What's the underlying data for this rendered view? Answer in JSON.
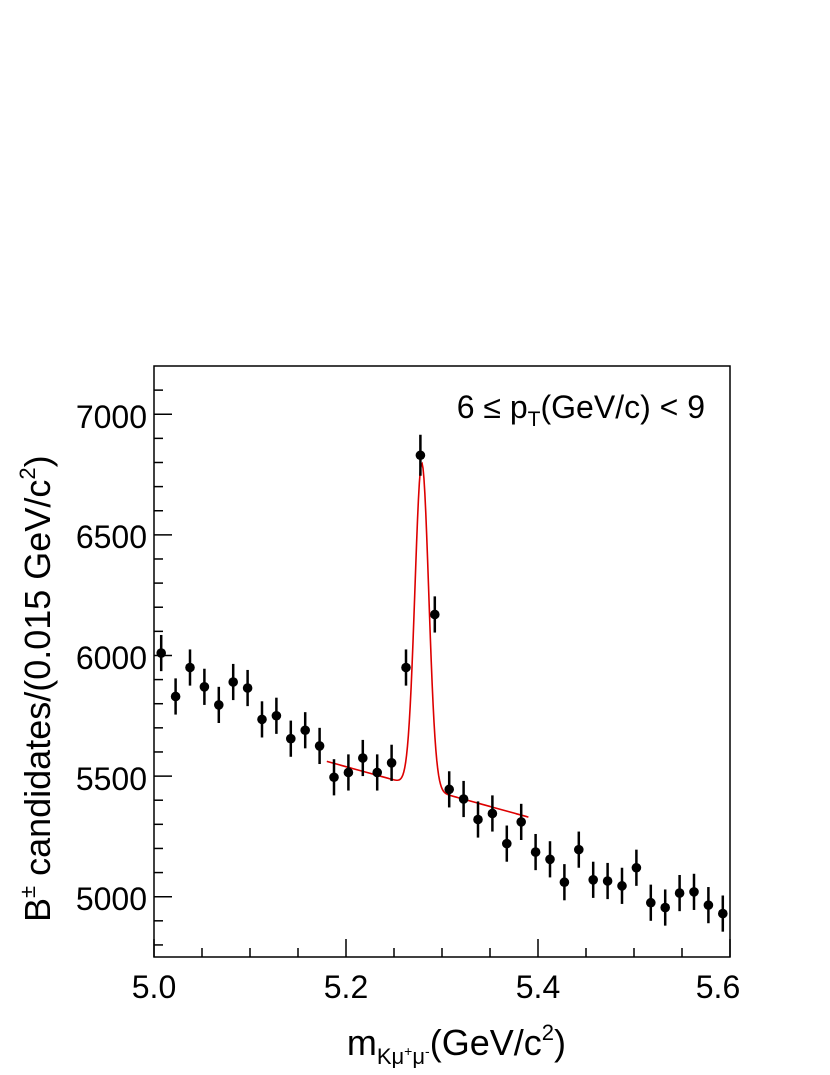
{
  "chart_data": {
    "type": "scatter",
    "annotation": {
      "prefix": "6 ≤ p",
      "sub": "T",
      "suffix": "(GeV/c) < 9"
    },
    "xlabel": {
      "main": "m",
      "sub": "Kμ",
      "subsup1": "+",
      "sub2": "μ",
      "subsup2": "-",
      "unit": "(GeV/c",
      "unit_sup": "2",
      "unit_end": ")"
    },
    "ylabel": {
      "main": "B",
      "sup": "±",
      "text": " candidates/(0.015 GeV/c",
      "text_sup": "2",
      "end": ")"
    },
    "xlim": [
      5.0,
      5.6
    ],
    "ylim": [
      4750,
      7200
    ],
    "x_ticks": [
      "5.0",
      "5.2",
      "5.4",
      "5.6"
    ],
    "y_ticks": [
      "5000",
      "5500",
      "6000",
      "6500",
      "7000"
    ],
    "grid": false,
    "colors": {
      "points": "#000000",
      "fit": "#dd0000",
      "frame": "#000000"
    },
    "series": [
      {
        "type": "errorbar",
        "x": [
          5.0075,
          5.0225,
          5.0375,
          5.0525,
          5.0675,
          5.0825,
          5.0975,
          5.1125,
          5.1275,
          5.1425,
          5.1575,
          5.1725,
          5.1875,
          5.2025,
          5.2175,
          5.2325,
          5.2475,
          5.2625,
          5.2775,
          5.2925,
          5.3075,
          5.3225,
          5.3375,
          5.3525,
          5.3675,
          5.3825,
          5.3975,
          5.4125,
          5.4275,
          5.4425,
          5.4575,
          5.4725,
          5.4875,
          5.5025,
          5.5175,
          5.5325,
          5.5475,
          5.5625,
          5.5775,
          5.5925
        ],
        "y": [
          6010,
          5830,
          5950,
          5870,
          5795,
          5890,
          5865,
          5735,
          5750,
          5655,
          5690,
          5625,
          5495,
          5515,
          5575,
          5515,
          5555,
          5950,
          6830,
          6170,
          5445,
          5405,
          5320,
          5345,
          5220,
          5310,
          5185,
          5155,
          5060,
          5195,
          5070,
          5065,
          5045,
          5120,
          4975,
          4955,
          5015,
          5020,
          4965,
          4930
        ],
        "err": [
          75,
          75,
          75,
          75,
          75,
          75,
          75,
          75,
          75,
          75,
          75,
          75,
          75,
          75,
          75,
          75,
          75,
          75,
          85,
          75,
          75,
          75,
          75,
          75,
          75,
          75,
          75,
          75,
          75,
          75,
          75,
          75,
          75,
          75,
          75,
          75,
          75,
          75,
          75,
          75
        ]
      },
      {
        "type": "fit",
        "x_range": [
          5.18,
          5.39
        ],
        "background": {
          "a": 5495,
          "slope": -1100,
          "x0": 5.24
        },
        "signal": {
          "mean": 5.279,
          "sigma": 0.0072,
          "amplitude": 1345
        }
      }
    ]
  }
}
